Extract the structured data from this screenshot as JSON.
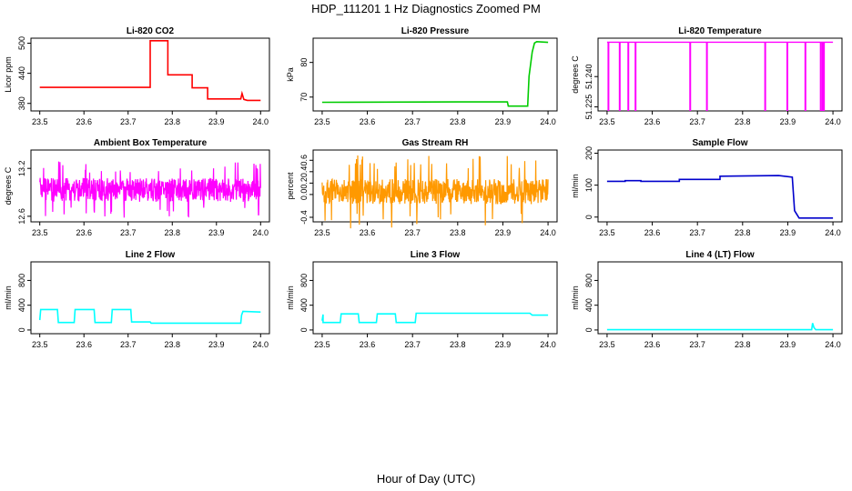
{
  "figure": {
    "title": "HDP_111201  1 Hz Diagnostics Zoomed PM",
    "xlabel": "Hour of Day (UTC)"
  },
  "chart_data": [
    {
      "type": "line",
      "title": "Li-820 CO2",
      "xlabel": "",
      "ylabel": "Licor ppm",
      "color": "#ff0000",
      "xlim": [
        23.5,
        24.0
      ],
      "ylim": [
        365,
        510
      ],
      "x_ticks": [
        "23.5",
        "23.6",
        "23.7",
        "23.8",
        "23.9",
        "24.0"
      ],
      "y_ticks": [
        "380",
        "440",
        "500"
      ],
      "y_tick_values": [
        380,
        440,
        500
      ],
      "series": [
        {
          "x": [
            23.5,
            23.75,
            23.75,
            23.79,
            23.79,
            23.845,
            23.845,
            23.88,
            23.88,
            23.955,
            23.958,
            23.962,
            23.97,
            24.0
          ],
          "y": [
            412,
            412,
            505,
            505,
            437,
            437,
            411,
            411,
            389,
            389,
            400,
            388,
            386,
            386
          ]
        }
      ]
    },
    {
      "type": "line",
      "title": "Li-820 Pressure",
      "xlabel": "",
      "ylabel": "kPa",
      "color": "#00cc00",
      "xlim": [
        23.5,
        24.0
      ],
      "ylim": [
        66,
        87
      ],
      "x_ticks": [
        "23.5",
        "23.6",
        "23.7",
        "23.8",
        "23.9",
        "24.0"
      ],
      "y_ticks": [
        "70",
        "80"
      ],
      "y_tick_values": [
        70,
        80
      ],
      "series": [
        {
          "x": [
            23.5,
            23.8,
            23.91,
            23.912,
            23.955,
            23.958,
            23.965,
            23.97,
            23.975,
            24.0
          ],
          "y": [
            68.5,
            68.6,
            68.6,
            67.4,
            67.4,
            76,
            83,
            85.6,
            86,
            85.8
          ]
        }
      ]
    },
    {
      "type": "line",
      "title": "Li-820 Temperature",
      "xlabel": "",
      "ylabel": "degrees C",
      "color": "#ff00ff",
      "xlim": [
        23.5,
        24.0
      ],
      "ylim": [
        51.223,
        51.259
      ],
      "x_ticks": [
        "23.5",
        "23.6",
        "23.7",
        "23.8",
        "23.9",
        "24.0"
      ],
      "y_ticks": [
        "51.225",
        "51.240"
      ],
      "y_tick_values": [
        51.225,
        51.24
      ],
      "baseline": 51.257,
      "dips": [
        23.503,
        23.528,
        23.547,
        23.563,
        23.684,
        23.721,
        23.85,
        23.899,
        23.939,
        23.973,
        23.977,
        23.98
      ]
    },
    {
      "type": "line",
      "title": "Ambient Box Temperature",
      "xlabel": "",
      "ylabel": "degrees C",
      "color": "#ff00ff",
      "xlim": [
        23.5,
        24.0
      ],
      "ylim": [
        12.53,
        13.43
      ],
      "x_ticks": [
        "23.5",
        "23.6",
        "23.7",
        "23.8",
        "23.9",
        "24.0"
      ],
      "y_ticks": [
        "12.6",
        "13.2"
      ],
      "y_tick_values": [
        12.6,
        13.2
      ],
      "noise": {
        "center": 12.93,
        "amplitude": 0.15,
        "spike": 0.36
      }
    },
    {
      "type": "line",
      "title": "Gas Stream RH",
      "xlabel": "",
      "ylabel": "percent",
      "color": "#ff9900",
      "xlim": [
        23.5,
        24.0
      ],
      "ylim": [
        -0.48,
        0.78
      ],
      "x_ticks": [
        "23.5",
        "23.6",
        "23.7",
        "23.8",
        "23.9",
        "24.0"
      ],
      "y_ticks": [
        "-0.4",
        "0.0",
        "0.2",
        "0.4",
        "0.6"
      ],
      "y_tick_values": [
        -0.4,
        0.0,
        0.2,
        0.4,
        0.6
      ],
      "noise": {
        "center": 0.05,
        "amplitude": 0.22,
        "spike": 0.65
      }
    },
    {
      "type": "line",
      "title": "Sample Flow",
      "xlabel": "",
      "ylabel": "ml/min",
      "color": "#0000cc",
      "xlim": [
        23.5,
        24.0
      ],
      "ylim": [
        -15,
        210
      ],
      "x_ticks": [
        "23.5",
        "23.6",
        "23.7",
        "23.8",
        "23.9",
        "24.0"
      ],
      "y_ticks": [
        "0",
        "100",
        "200"
      ],
      "y_tick_values": [
        0,
        100,
        200
      ],
      "series": [
        {
          "x": [
            23.5,
            23.54,
            23.54,
            23.575,
            23.575,
            23.66,
            23.66,
            23.75,
            23.75,
            23.88,
            23.91,
            23.915,
            23.925,
            24.0
          ],
          "y": [
            112,
            112,
            114,
            114,
            112,
            112,
            118,
            118,
            128,
            130,
            125,
            20,
            -3,
            -3
          ]
        }
      ]
    },
    {
      "type": "line",
      "title": "Line 2 Flow",
      "xlabel": "",
      "ylabel": "ml/min",
      "color": "#00ffff",
      "xlim": [
        23.5,
        24.0
      ],
      "ylim": [
        -60,
        1100
      ],
      "x_ticks": [
        "23.5",
        "23.6",
        "23.7",
        "23.8",
        "23.9",
        "24.0"
      ],
      "y_ticks": [
        "0",
        "400",
        "800"
      ],
      "y_tick_values": [
        0,
        400,
        800
      ],
      "series": [
        {
          "x": [
            23.5,
            23.502,
            23.54,
            23.542,
            23.578,
            23.58,
            23.623,
            23.625,
            23.662,
            23.664,
            23.706,
            23.708,
            23.75,
            23.752,
            23.955,
            23.957,
            23.96,
            24.0
          ],
          "y": [
            160,
            330,
            330,
            120,
            120,
            330,
            330,
            120,
            120,
            330,
            330,
            130,
            130,
            110,
            110,
            240,
            300,
            290
          ]
        }
      ]
    },
    {
      "type": "line",
      "title": "Line 3 Flow",
      "xlabel": "",
      "ylabel": "ml/min",
      "color": "#00ffff",
      "xlim": [
        23.5,
        24.0
      ],
      "ylim": [
        -60,
        1100
      ],
      "x_ticks": [
        "23.5",
        "23.6",
        "23.7",
        "23.8",
        "23.9",
        "24.0"
      ],
      "y_ticks": [
        "0",
        "400",
        "800"
      ],
      "y_tick_values": [
        0,
        400,
        800
      ],
      "series": [
        {
          "x": [
            23.5,
            23.502,
            23.502,
            23.54,
            23.542,
            23.58,
            23.582,
            23.62,
            23.622,
            23.662,
            23.664,
            23.706,
            23.708,
            23.96,
            23.965,
            24.0
          ],
          "y": [
            150,
            250,
            120,
            120,
            260,
            260,
            120,
            120,
            260,
            260,
            120,
            120,
            270,
            270,
            240,
            240
          ]
        }
      ]
    },
    {
      "type": "line",
      "title": "Line 4 (LT) Flow",
      "xlabel": "",
      "ylabel": "ml/min",
      "color": "#00ffff",
      "xlim": [
        23.5,
        24.0
      ],
      "ylim": [
        -60,
        1100
      ],
      "x_ticks": [
        "23.5",
        "23.6",
        "23.7",
        "23.8",
        "23.9",
        "24.0"
      ],
      "y_ticks": [
        "0",
        "400",
        "800"
      ],
      "y_tick_values": [
        0,
        400,
        800
      ],
      "series": [
        {
          "x": [
            23.5,
            23.95,
            23.953,
            23.955,
            23.958,
            23.962,
            24.0
          ],
          "y": [
            5,
            5,
            5,
            110,
            40,
            5,
            5
          ]
        }
      ]
    }
  ]
}
